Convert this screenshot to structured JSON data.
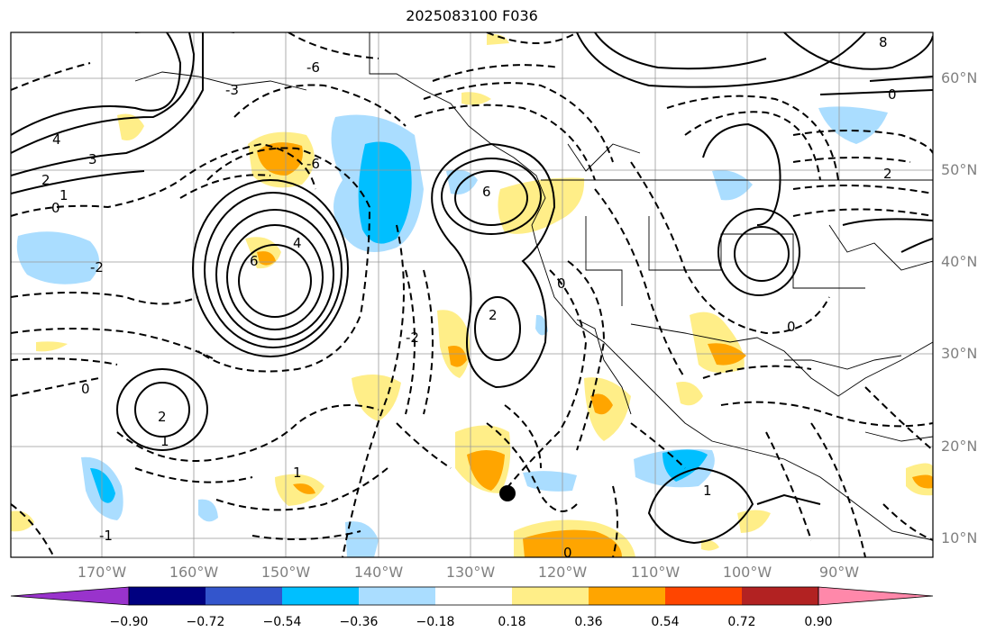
{
  "title": "2025083100 F036",
  "map": {
    "lon_ticks": [
      "170°W",
      "160°W",
      "150°W",
      "140°W",
      "130°W",
      "120°W",
      "110°W",
      "100°W",
      "90°W"
    ],
    "lat_ticks": [
      "60°N",
      "50°N",
      "40°N",
      "30°N",
      "20°N",
      "10°N"
    ],
    "extent": {
      "lon_min": -180,
      "lon_max": -80,
      "lat_min": 8,
      "lat_max": 65
    },
    "gridlines": true,
    "contour_labels": [
      "0",
      "1",
      "2",
      "3",
      "4",
      "6",
      "8",
      "-1",
      "-2",
      "-3",
      "-4",
      "-6"
    ],
    "marker": {
      "lon": -126,
      "lat": 14.5
    }
  },
  "colorbar": {
    "ticks": [
      "−0.90",
      "−0.72",
      "−0.54",
      "−0.36",
      "−0.18",
      "0.18",
      "0.36",
      "0.54",
      "0.72",
      "0.90"
    ],
    "colors": [
      "#9933cc",
      "#000080",
      "#3355cc",
      "#00bfff",
      "#aaddff",
      "#ffffff",
      "#ffee88",
      "#ffa500",
      "#ff4500",
      "#b22222",
      "#ff88aa"
    ]
  }
}
